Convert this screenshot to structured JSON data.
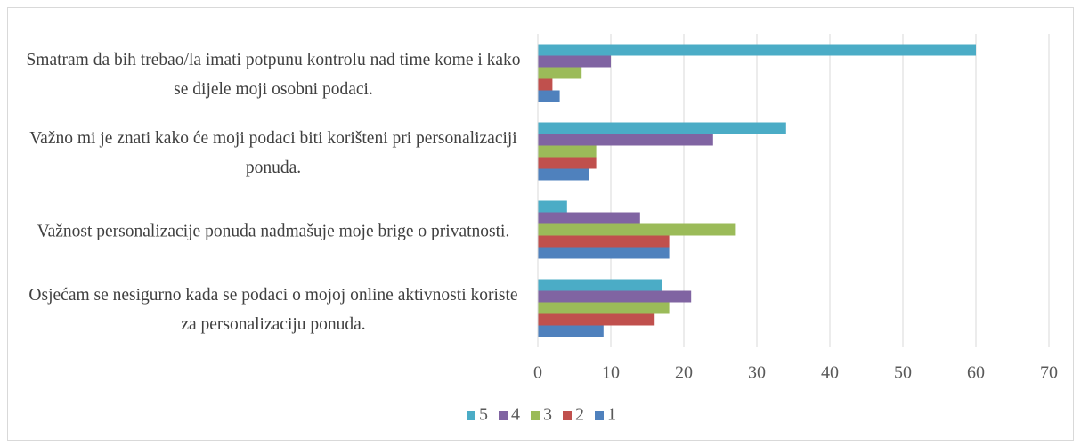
{
  "chart_data": {
    "type": "barh",
    "categories": [
      "Smatram da bih trebao/la imati potpunu kontrolu nad time kome i kako se dijele moji osobni podaci.",
      "Važno mi je znati kako će moji podaci biti korišteni pri personalizaciji ponuda.",
      "Važnost personalizacije ponuda nadmašuje moje brige o privatnosti.",
      "Osjećam se nesigurno kada se podaci o mojoj online aktivnosti koriste za personalizaciju ponuda."
    ],
    "series": [
      {
        "name": "5",
        "color": "#4bacc6",
        "values": [
          60,
          34,
          4,
          17
        ]
      },
      {
        "name": "4",
        "color": "#8064a2",
        "values": [
          10,
          24,
          14,
          21
        ]
      },
      {
        "name": "3",
        "color": "#9bbb59",
        "values": [
          6,
          8,
          27,
          18
        ]
      },
      {
        "name": "2",
        "color": "#c0504d",
        "values": [
          2,
          8,
          18,
          16
        ]
      },
      {
        "name": "1",
        "color": "#4f81bd",
        "values": [
          3,
          7,
          18,
          9
        ]
      }
    ],
    "xlim": [
      0,
      70
    ],
    "xticks": [
      0,
      10,
      20,
      30,
      40,
      50,
      60,
      70
    ],
    "grid": true,
    "legend": "bottom"
  }
}
